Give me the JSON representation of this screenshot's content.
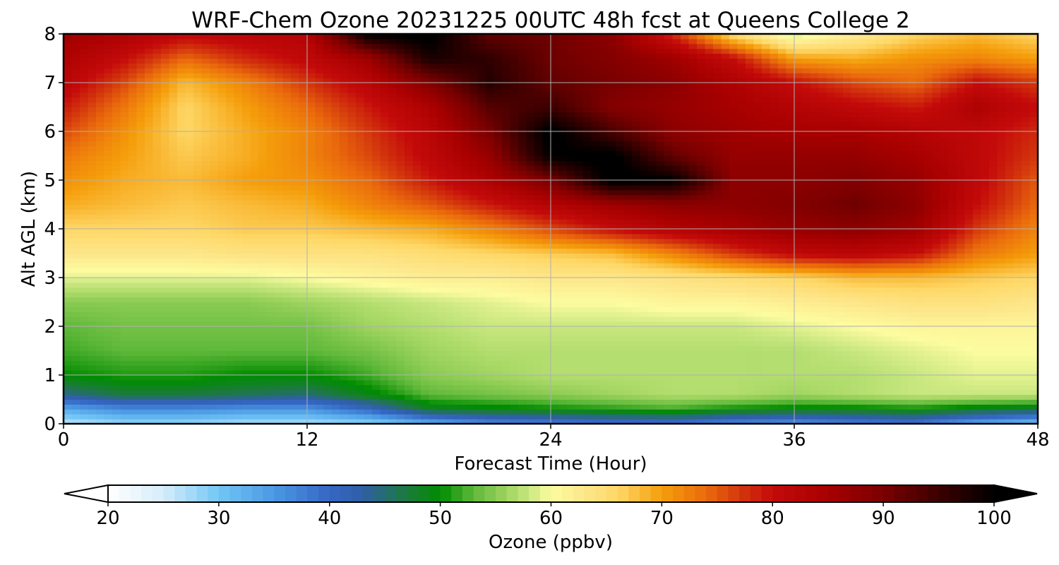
{
  "chart_data": {
    "type": "heatmap",
    "title": "WRF-Chem Ozone  20231225 00UTC 48h fcst at Queens College 2",
    "xlabel": "Forecast Time (Hour)",
    "ylabel": "Alt AGL (km)",
    "xlim": [
      0,
      48
    ],
    "ylim": [
      0,
      8
    ],
    "x_ticks": [
      "0",
      "12",
      "24",
      "36",
      "48"
    ],
    "y_ticks": [
      "0",
      "1",
      "2",
      "3",
      "4",
      "5",
      "6",
      "7",
      "8"
    ],
    "grid": true,
    "colorbar": {
      "label": "Ozone  (ppbv)",
      "orientation": "horizontal",
      "placement": "bottom",
      "range": [
        20,
        100
      ],
      "extend": "both",
      "ticks": [
        "20",
        "30",
        "40",
        "50",
        "60",
        "70",
        "80",
        "90",
        "100"
      ],
      "stops": [
        {
          "value": 20,
          "color": "#ffffff"
        },
        {
          "value": 25,
          "color": "#d6edfb"
        },
        {
          "value": 30,
          "color": "#72c6f5"
        },
        {
          "value": 35,
          "color": "#4a98e3"
        },
        {
          "value": 40,
          "color": "#3566c4"
        },
        {
          "value": 43,
          "color": "#2f5fa6"
        },
        {
          "value": 47,
          "color": "#1c7a3c"
        },
        {
          "value": 50,
          "color": "#008c00"
        },
        {
          "value": 53,
          "color": "#5fb83a"
        },
        {
          "value": 56,
          "color": "#9fd45f"
        },
        {
          "value": 58,
          "color": "#c8e77f"
        },
        {
          "value": 60,
          "color": "#fdfca0"
        },
        {
          "value": 63,
          "color": "#fde68a"
        },
        {
          "value": 66,
          "color": "#fed867"
        },
        {
          "value": 70,
          "color": "#f59e0b"
        },
        {
          "value": 74,
          "color": "#ea6a0c"
        },
        {
          "value": 77,
          "color": "#d4380d"
        },
        {
          "value": 80,
          "color": "#c40a0a"
        },
        {
          "value": 85,
          "color": "#a80000"
        },
        {
          "value": 90,
          "color": "#7a0000"
        },
        {
          "value": 95,
          "color": "#3c0000"
        },
        {
          "value": 100,
          "color": "#000000"
        }
      ]
    },
    "grid_hours": [
      0,
      3,
      6,
      9,
      12,
      15,
      18,
      21,
      24,
      27,
      30,
      33,
      36,
      39,
      42,
      45,
      48
    ],
    "grid_alt_km": [
      0,
      0.3,
      0.6,
      1,
      1.5,
      2,
      2.5,
      3,
      3.5,
      4,
      4.5,
      5,
      5.5,
      6,
      6.5,
      7,
      7.5,
      8
    ],
    "ozone_ppbv": [
      [
        26,
        28,
        28,
        27,
        27,
        28,
        32,
        36,
        37,
        38,
        38,
        36,
        35,
        37,
        38,
        33,
        30
      ],
      [
        33,
        36,
        36,
        35,
        35,
        40,
        48,
        49,
        50,
        51,
        52,
        50,
        49,
        49,
        50,
        48,
        47
      ],
      [
        44,
        47,
        47,
        46,
        45,
        49,
        53,
        54,
        55,
        56,
        57,
        57,
        56,
        57,
        58,
        58,
        58
      ],
      [
        50,
        51,
        51,
        50,
        50,
        52,
        55,
        56,
        57,
        57,
        57,
        57,
        57,
        57,
        58,
        59,
        59
      ],
      [
        52,
        53,
        53,
        53,
        53,
        54,
        56,
        57,
        57,
        57,
        57,
        57,
        57,
        58,
        59,
        60,
        60
      ],
      [
        53,
        54,
        54,
        54,
        54,
        56,
        57,
        58,
        58,
        58,
        58,
        58,
        59,
        60,
        61,
        61,
        61
      ],
      [
        55,
        55,
        55,
        55,
        56,
        57,
        58,
        59,
        60,
        60,
        61,
        61,
        62,
        63,
        64,
        64,
        63
      ],
      [
        59,
        59,
        59,
        59,
        60,
        61,
        62,
        62,
        63,
        63,
        64,
        65,
        66,
        68,
        68,
        67,
        66
      ],
      [
        63,
        63,
        63,
        64,
        64,
        64,
        65,
        66,
        67,
        68,
        72,
        77,
        81,
        82,
        80,
        73,
        70
      ],
      [
        66,
        66,
        66,
        67,
        67,
        68,
        69,
        72,
        76,
        80,
        83,
        85,
        87,
        88,
        86,
        77,
        72
      ],
      [
        69,
        68,
        67,
        68,
        69,
        72,
        75,
        79,
        83,
        86,
        88,
        88,
        89,
        91,
        88,
        80,
        74
      ],
      [
        71,
        69,
        68,
        70,
        71,
        74,
        79,
        84,
        90,
        101,
        100,
        88,
        88,
        89,
        87,
        81,
        75
      ],
      [
        73,
        70,
        67,
        69,
        72,
        76,
        81,
        87,
        100,
        101,
        92,
        87,
        87,
        87,
        85,
        81,
        77
      ],
      [
        76,
        71,
        66,
        69,
        72,
        77,
        82,
        90,
        101,
        94,
        88,
        86,
        85,
        85,
        83,
        81,
        78
      ],
      [
        79,
        73,
        66,
        70,
        74,
        79,
        84,
        93,
        95,
        89,
        87,
        85,
        83,
        81,
        79,
        84,
        80
      ],
      [
        82,
        76,
        68,
        72,
        77,
        82,
        89,
        97,
        92,
        90,
        88,
        84,
        80,
        76,
        74,
        80,
        77
      ],
      [
        84,
        80,
        74,
        78,
        81,
        86,
        98,
        96,
        91,
        89,
        86,
        80,
        70,
        69,
        71,
        72,
        70
      ],
      [
        86,
        84,
        81,
        82,
        83,
        100,
        101,
        92,
        91,
        88,
        78,
        65,
        58,
        62,
        66,
        68,
        66
      ]
    ]
  }
}
